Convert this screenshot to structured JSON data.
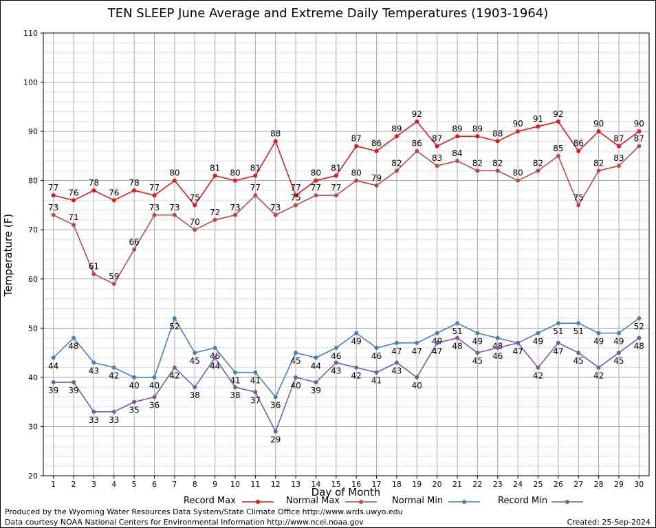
{
  "title": "TEN SLEEP June Average and Extreme Daily Temperatures (1903-1964)",
  "footer": {
    "line1": "Produced by the Wyoming Water Resources Data System/State Climate Office http://www.wrds.uwyo.edu",
    "line2": "Data courtesy NOAA National Centers for Environmental Information http://www.ncei.noaa.gov",
    "created": "Created:  25-Sep-2024"
  },
  "chart_data": {
    "type": "line",
    "title": "TEN SLEEP June Average and Extreme Daily Temperatures (1903-1964)",
    "xlabel": "Day of Month",
    "ylabel": "Temperature (F)",
    "x": [
      1,
      2,
      3,
      4,
      5,
      6,
      7,
      8,
      9,
      10,
      11,
      12,
      13,
      14,
      15,
      16,
      17,
      18,
      19,
      20,
      21,
      22,
      23,
      24,
      25,
      26,
      27,
      28,
      29,
      30
    ],
    "xlim": [
      0.5,
      30.5
    ],
    "ylim": [
      20,
      110
    ],
    "yticks": [
      20,
      30,
      40,
      50,
      60,
      70,
      80,
      90,
      100,
      110
    ],
    "grid": true,
    "legend": "bottom",
    "series": [
      {
        "name": "Record Max",
        "color": "#e8141a",
        "values": [
          77,
          76,
          78,
          76,
          78,
          77,
          80,
          75,
          81,
          80,
          81,
          88,
          77,
          80,
          81,
          87,
          86,
          89,
          92,
          87,
          89,
          89,
          88,
          90,
          91,
          92,
          86,
          90,
          87,
          90
        ]
      },
      {
        "name": "Normal Max",
        "color": "#b84a4a",
        "values": [
          73,
          71,
          61,
          59,
          66,
          73,
          73,
          70,
          72,
          73,
          77,
          73,
          75,
          77,
          77,
          80,
          79,
          82,
          86,
          83,
          84,
          82,
          82,
          80,
          82,
          85,
          75,
          82,
          83,
          87
        ]
      },
      {
        "name": "Normal Min",
        "color": "#4a7fb5",
        "values": [
          44,
          48,
          43,
          42,
          40,
          40,
          52,
          45,
          46,
          41,
          41,
          36,
          45,
          44,
          46,
          49,
          46,
          47,
          47,
          49,
          51,
          49,
          48,
          47,
          49,
          51,
          51,
          49,
          49,
          52
        ]
      },
      {
        "name": "Record Min",
        "color": "#7b5a9b",
        "values": [
          39,
          39,
          33,
          33,
          35,
          36,
          42,
          38,
          44,
          38,
          37,
          29,
          40,
          39,
          43,
          42,
          41,
          43,
          40,
          47,
          48,
          45,
          46,
          47,
          42,
          47,
          45,
          42,
          45,
          48
        ]
      }
    ]
  }
}
